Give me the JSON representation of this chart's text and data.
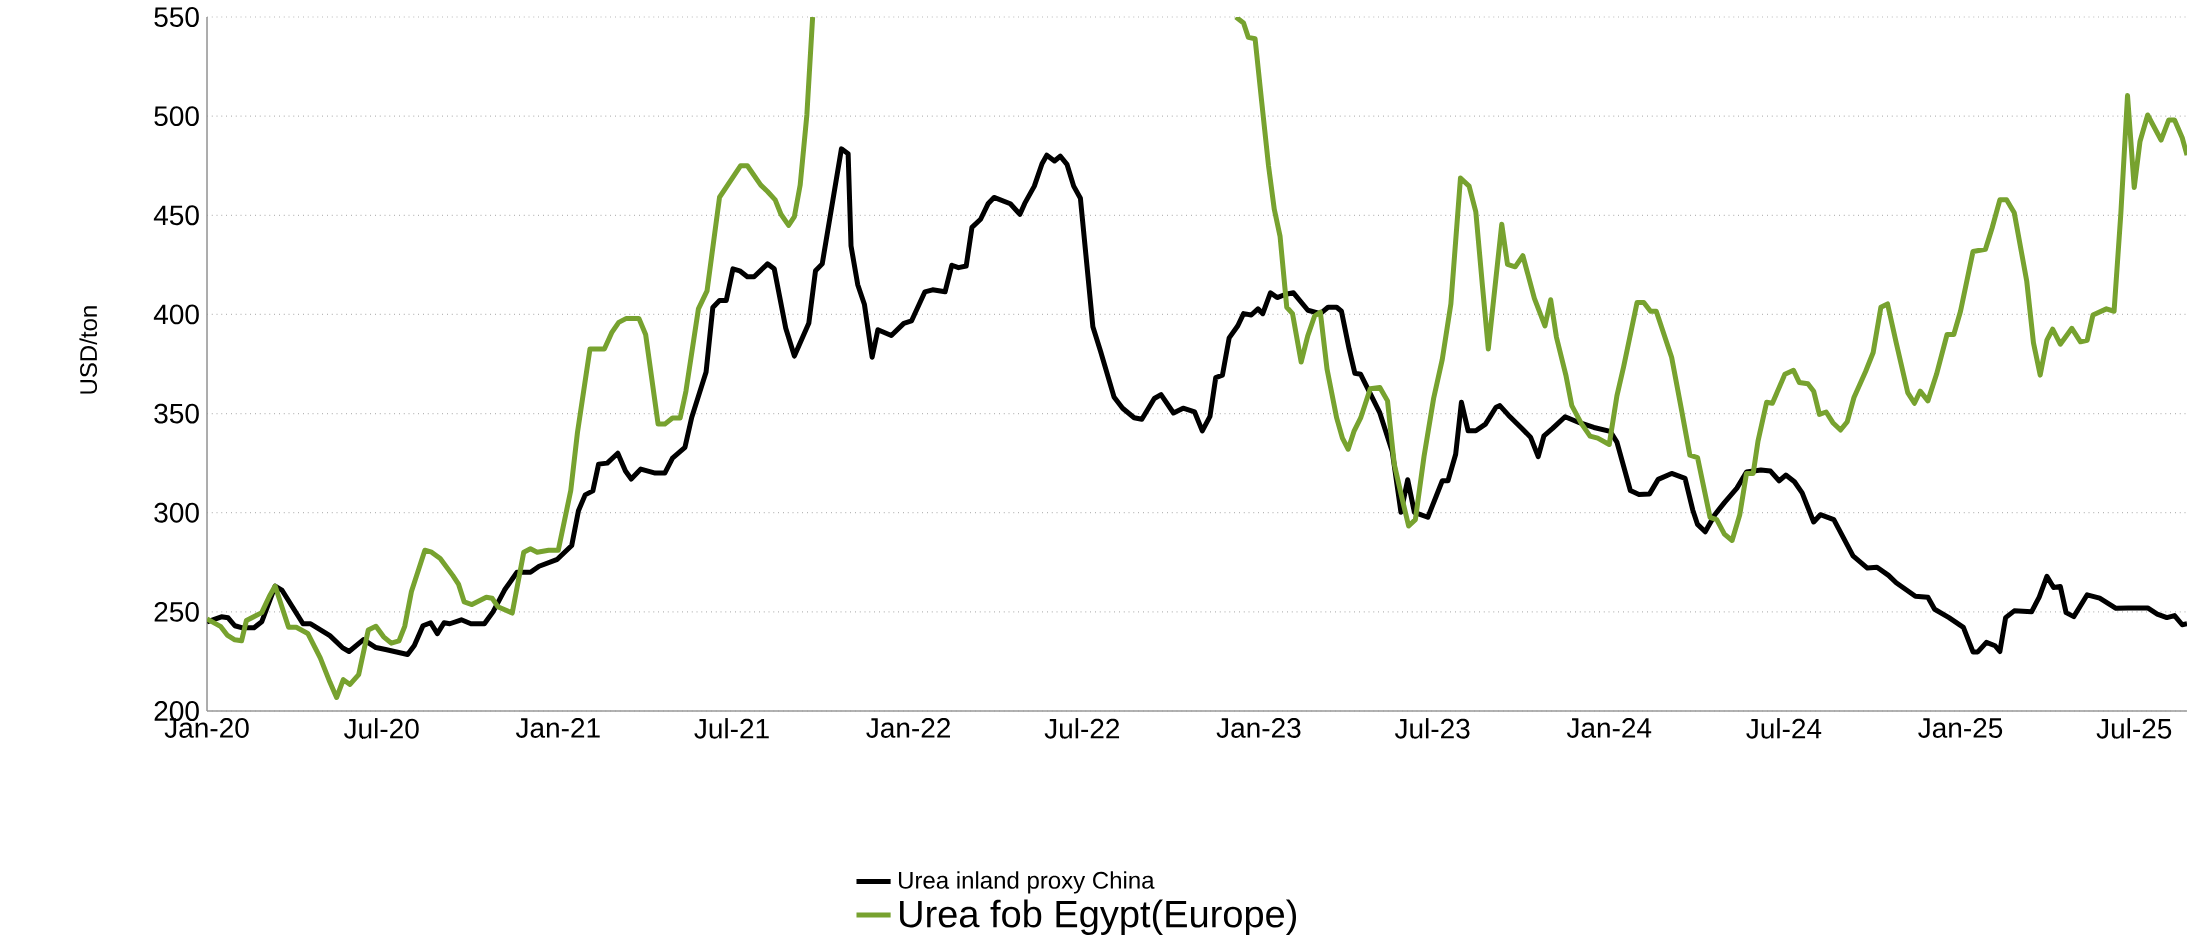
{
  "chart_data": {
    "type": "line",
    "ylabel": "USD/ton",
    "ylim": [
      200,
      550
    ],
    "yticks": [
      200,
      250,
      300,
      350,
      400,
      450,
      500,
      550
    ],
    "xlim": [
      "2020-01-01",
      "2025-08-25"
    ],
    "xticks": [
      {
        "value": "2020-01-01",
        "label": "Jan-20"
      },
      {
        "value": "2020-07-01",
        "label": "Jul-20"
      },
      {
        "value": "2021-01-01",
        "label": "Jan-21"
      },
      {
        "value": "2021-07-01",
        "label": "Jul-21"
      },
      {
        "value": "2022-01-01",
        "label": "Jan-22"
      },
      {
        "value": "2022-07-01",
        "label": "Jul-22"
      },
      {
        "value": "2023-01-01",
        "label": "Jan-23"
      },
      {
        "value": "2023-07-01",
        "label": "Jul-23"
      },
      {
        "value": "2024-01-01",
        "label": "Jan-24"
      },
      {
        "value": "2024-07-01",
        "label": "Jul-24"
      },
      {
        "value": "2025-01-01",
        "label": "Jan-25"
      },
      {
        "value": "2025-07-01",
        "label": "Jul-25"
      }
    ],
    "grid": "y",
    "legend": "bottom",
    "marker": "none",
    "line_style": "solid",
    "series": [
      {
        "name": "Urea inland proxy China",
        "color": "#000000",
        "x": [
          "2020-01-01",
          "2020-01-16",
          "2020-01-23",
          "2020-01-30",
          "2020-02-06",
          "2020-02-19",
          "2020-02-27",
          "2020-03-12",
          "2020-03-19",
          "2020-04-10",
          "2020-04-18",
          "2020-05-08",
          "2020-05-21",
          "2020-05-28",
          "2020-06-12",
          "2020-06-25",
          "2020-07-05",
          "2020-07-28",
          "2020-08-04",
          "2020-08-13",
          "2020-08-21",
          "2020-08-28",
          "2020-09-04",
          "2020-09-10",
          "2020-09-22",
          "2020-10-02",
          "2020-10-16",
          "2020-10-25",
          "2020-11-06",
          "2020-11-19",
          "2020-12-03",
          "2020-12-12",
          "2020-12-31",
          "2021-01-15",
          "2021-01-22",
          "2021-01-29",
          "2021-02-06",
          "2021-02-12",
          "2021-02-21",
          "2021-03-04",
          "2021-03-12",
          "2021-03-18",
          "2021-03-28",
          "2021-04-12",
          "2021-04-22",
          "2021-04-30",
          "2021-05-13",
          "2021-05-20",
          "2021-06-04",
          "2021-06-11",
          "2021-06-18",
          "2021-06-25",
          "2021-07-02",
          "2021-07-09",
          "2021-07-17",
          "2021-07-24",
          "2021-08-07",
          "2021-08-14",
          "2021-08-26",
          "2021-09-04",
          "2021-09-19",
          "2021-09-26",
          "2021-10-03",
          "2021-10-23",
          "2021-10-30",
          "2021-11-02",
          "2021-11-09",
          "2021-11-16",
          "2021-11-24",
          "2021-11-30",
          "2021-12-14",
          "2021-12-27",
          "2022-01-04",
          "2022-01-18",
          "2022-01-26",
          "2022-02-08",
          "2022-02-15",
          "2022-02-22",
          "2022-03-02",
          "2022-03-08",
          "2022-03-17",
          "2022-03-25",
          "2022-03-31",
          "2022-04-17",
          "2022-04-27",
          "2022-05-02",
          "2022-05-12",
          "2022-05-20",
          "2022-05-25",
          "2022-06-02",
          "2022-06-08",
          "2022-06-15",
          "2022-06-22",
          "2022-06-29",
          "2022-07-12",
          "2022-07-20",
          "2022-08-03",
          "2022-08-12",
          "2022-08-24",
          "2022-09-01",
          "2022-09-14",
          "2022-09-21",
          "2022-10-04",
          "2022-10-14",
          "2022-10-26",
          "2022-11-03",
          "2022-11-11",
          "2022-11-17",
          "2022-11-24",
          "2022-12-01",
          "2022-12-10",
          "2022-12-16",
          "2022-12-24",
          "2022-12-31",
          "2023-01-05",
          "2023-01-13",
          "2023-01-20",
          "2023-01-29",
          "2023-02-06",
          "2023-02-21",
          "2023-03-06",
          "2023-03-14",
          "2023-03-23",
          "2023-03-28",
          "2023-04-05",
          "2023-04-11",
          "2023-04-17",
          "2023-05-07",
          "2023-05-20",
          "2023-05-29",
          "2023-06-05",
          "2023-06-12",
          "2023-06-26",
          "2023-07-05",
          "2023-07-11",
          "2023-07-17",
          "2023-07-25",
          "2023-07-31",
          "2023-08-07",
          "2023-08-15",
          "2023-08-25",
          "2023-09-05",
          "2023-09-09",
          "2023-09-18",
          "2023-10-01",
          "2023-10-11",
          "2023-10-19",
          "2023-10-25",
          "2023-11-03",
          "2023-11-16",
          "2023-12-01",
          "2023-12-16",
          "2024-01-02",
          "2024-01-09",
          "2024-01-23",
          "2024-02-01",
          "2024-02-12",
          "2024-02-21",
          "2024-03-06",
          "2024-03-20",
          "2024-03-28",
          "2024-04-02",
          "2024-04-10",
          "2024-04-20",
          "2024-04-30",
          "2024-05-13",
          "2024-05-23",
          "2024-06-07",
          "2024-06-17",
          "2024-06-26",
          "2024-07-03",
          "2024-07-12",
          "2024-07-20",
          "2024-08-01",
          "2024-08-08",
          "2024-08-22",
          "2024-09-11",
          "2024-09-26",
          "2024-10-06",
          "2024-10-18",
          "2024-10-26",
          "2024-11-15",
          "2024-11-28",
          "2024-12-05",
          "2024-12-20",
          "2025-01-04",
          "2025-01-14",
          "2025-01-19",
          "2025-01-28",
          "2025-02-06",
          "2025-02-11",
          "2025-02-17",
          "2025-02-26",
          "2025-03-16",
          "2025-03-24",
          "2025-04-01",
          "2025-04-08",
          "2025-04-15",
          "2025-04-21",
          "2025-04-29",
          "2025-05-13",
          "2025-05-26",
          "2025-06-12",
          "2025-06-25",
          "2025-07-15",
          "2025-07-25",
          "2025-08-04",
          "2025-08-12",
          "2025-08-20",
          "2025-08-25"
        ],
        "values": [
          245,
          247.5,
          247,
          243,
          242,
          242,
          245,
          263,
          261,
          244,
          244,
          238,
          232,
          230,
          236,
          232,
          231,
          228.5,
          233,
          243,
          244.5,
          239,
          244.5,
          244,
          246,
          244,
          244,
          250,
          261,
          270,
          270,
          273,
          276.5,
          283.5,
          301,
          309,
          311,
          324.5,
          325,
          330,
          321,
          317,
          322,
          320,
          320,
          327.5,
          333,
          348,
          371,
          403.5,
          407,
          407,
          423,
          422,
          419,
          419,
          425.5,
          423,
          393,
          379,
          395.5,
          422,
          425.5,
          483.5,
          481,
          434.6,
          415,
          405,
          378.4,
          392.3,
          389.4,
          395.5,
          396.7,
          411.4,
          412.4,
          411.4,
          424.8,
          423.6,
          424.4,
          443.9,
          448,
          456,
          459,
          455.8,
          450.5,
          456,
          464.7,
          476,
          480.3,
          477.4,
          479.8,
          475.7,
          464.7,
          458.6,
          393.8,
          381.4,
          358.4,
          352.7,
          347.9,
          347.1,
          357.6,
          359.6,
          350.3,
          352.7,
          350.8,
          341.3,
          348.6,
          368.1,
          369.4,
          388.2,
          394.3,
          400.4,
          399.7,
          402.8,
          400.4,
          410.9,
          408.5,
          410.2,
          410.9,
          402.1,
          400.4,
          403.6,
          403.6,
          401.6,
          382.6,
          370.3,
          369.8,
          350.3,
          330.7,
          300.2,
          316.6,
          300.2,
          297.7,
          308.7,
          316.1,
          316.1,
          329.5,
          355.7,
          341.3,
          341.3,
          344.7,
          353.2,
          354,
          349.2,
          343,
          338.1,
          328.3,
          338.8,
          342.5,
          348.4,
          345.4,
          343,
          341,
          335.6,
          311.2,
          309.2,
          309.5,
          316.8,
          319.8,
          317.3,
          301.4,
          294.1,
          290.4,
          299,
          305.1,
          312.4,
          320.5,
          321.5,
          321,
          316.1,
          319,
          315.6,
          310,
          295.3,
          299,
          296.5,
          278.2,
          272.1,
          272.5,
          268.4,
          264.7,
          257.9,
          257.4,
          251.3,
          247.1,
          242.2,
          229.8,
          229.8,
          234.6,
          232.9,
          230,
          247.1,
          250.5,
          250,
          257.4,
          267.9,
          262.3,
          262.8,
          249.6,
          247.6,
          258.6,
          256.9,
          251.8,
          252,
          252,
          248.9,
          247.1,
          248.1,
          243.5,
          244
        ]
      },
      {
        "name": "Urea fob Egypt(Europe)",
        "color": "#77a22f",
        "x": [
          "2020-01-01",
          "2020-01-15",
          "2020-01-22",
          "2020-01-30",
          "2020-02-06",
          "2020-02-11",
          "2020-02-27",
          "2020-03-06",
          "2020-03-12",
          "2020-03-19",
          "2020-03-26",
          "2020-04-03",
          "2020-04-15",
          "2020-04-28",
          "2020-05-08",
          "2020-05-15",
          "2020-05-22",
          "2020-05-29",
          "2020-06-07",
          "2020-06-17",
          "2020-06-25",
          "2020-07-03",
          "2020-07-11",
          "2020-07-19",
          "2020-07-25",
          "2020-08-01",
          "2020-08-15",
          "2020-08-22",
          "2020-08-31",
          "2020-09-13",
          "2020-09-19",
          "2020-09-25",
          "2020-10-03",
          "2020-10-18",
          "2020-10-24",
          "2020-10-30",
          "2020-11-14",
          "2020-11-26",
          "2020-12-03",
          "2020-12-10",
          "2020-12-22",
          "2021-01-01",
          "2021-01-14",
          "2021-01-21",
          "2021-02-03",
          "2021-02-18",
          "2021-02-26",
          "2021-03-05",
          "2021-03-13",
          "2021-03-26",
          "2021-04-02",
          "2021-04-15",
          "2021-04-22",
          "2021-04-30",
          "2021-05-08",
          "2021-05-14",
          "2021-05-27",
          "2021-06-05",
          "2021-06-18",
          "2021-07-10",
          "2021-07-17",
          "2021-07-31",
          "2021-08-07",
          "2021-08-15",
          "2021-08-21",
          "2021-08-29",
          "2021-09-04",
          "2021-09-10",
          "2021-09-17",
          "2021-09-23",
          "2022-06-01",
          "2022-12-08",
          "2022-12-16",
          "2022-12-21",
          "2022-12-28",
          "2023-01-04",
          "2023-01-11",
          "2023-01-17",
          "2023-01-23",
          "2023-01-30",
          "2023-02-05",
          "2023-02-14",
          "2023-02-21",
          "2023-02-28",
          "2023-03-06",
          "2023-03-13",
          "2023-03-23",
          "2023-03-29",
          "2023-04-04",
          "2023-04-10",
          "2023-04-17",
          "2023-04-27",
          "2023-05-07",
          "2023-05-15",
          "2023-05-22",
          "2023-05-30",
          "2023-06-06",
          "2023-06-13",
          "2023-06-22",
          "2023-07-02",
          "2023-07-11",
          "2023-07-20",
          "2023-07-30",
          "2023-08-08",
          "2023-08-15",
          "2023-08-22",
          "2023-08-28",
          "2023-09-11",
          "2023-09-17",
          "2023-09-25",
          "2023-10-03",
          "2023-10-15",
          "2023-10-26",
          "2023-11-01",
          "2023-11-07",
          "2023-11-17",
          "2023-11-23",
          "2023-12-03",
          "2023-12-12",
          "2023-12-20",
          "2024-01-01",
          "2024-01-09",
          "2024-01-16",
          "2024-01-30",
          "2024-02-06",
          "2024-02-13",
          "2024-02-19",
          "2024-03-06",
          "2024-03-16",
          "2024-03-25",
          "2024-04-02",
          "2024-04-15",
          "2024-04-22",
          "2024-04-30",
          "2024-05-08",
          "2024-05-16",
          "2024-05-23",
          "2024-05-30",
          "2024-06-04",
          "2024-06-13",
          "2024-06-19",
          "2024-07-02",
          "2024-07-11",
          "2024-07-17",
          "2024-07-26",
          "2024-08-01",
          "2024-08-07",
          "2024-08-14",
          "2024-08-21",
          "2024-08-29",
          "2024-09-05",
          "2024-09-12",
          "2024-09-24",
          "2024-10-02",
          "2024-10-10",
          "2024-10-17",
          "2024-10-26",
          "2024-11-07",
          "2024-11-14",
          "2024-11-20",
          "2024-11-28",
          "2024-12-07",
          "2024-12-18",
          "2024-12-25",
          "2025-01-01",
          "2025-01-14",
          "2025-01-27",
          "2025-02-03",
          "2025-02-11",
          "2025-02-18",
          "2025-02-26",
          "2025-03-11",
          "2025-03-18",
          "2025-03-25",
          "2025-04-01",
          "2025-04-07",
          "2025-04-15",
          "2025-04-27",
          "2025-05-06",
          "2025-05-13",
          "2025-05-19",
          "2025-06-02",
          "2025-06-10",
          "2025-06-17",
          "2025-06-24",
          "2025-07-01",
          "2025-07-07",
          "2025-07-15",
          "2025-07-29",
          "2025-08-06",
          "2025-08-12",
          "2025-08-20",
          "2025-08-25"
        ],
        "values": [
          246.4,
          242.7,
          238.3,
          235.9,
          235.4,
          245.6,
          249.6,
          257.9,
          263,
          252.6,
          242.2,
          242.2,
          239.1,
          226.8,
          214.6,
          206.8,
          215.8,
          213.4,
          218.3,
          240.8,
          242.7,
          237.4,
          234.2,
          235.4,
          242.7,
          260.3,
          281.1,
          280.1,
          276.9,
          268.4,
          264,
          255,
          253.7,
          257.4,
          256.9,
          252.6,
          249.4,
          280.1,
          281.8,
          280.1,
          281.1,
          281.1,
          311.2,
          340.5,
          382.6,
          382.6,
          391.1,
          396,
          398,
          398,
          389.9,
          344.7,
          344.7,
          347.8,
          347.8,
          361.3,
          402.8,
          411.9,
          459.1,
          475,
          475,
          465.2,
          462,
          457.8,
          450.5,
          444.9,
          449.3,
          465.2,
          500.6,
          550,
          null,
          550,
          547,
          539.7,
          539,
          506.7,
          475,
          453,
          439.5,
          403.6,
          400.4,
          376,
          389.4,
          399.2,
          401.1,
          372.3,
          347.8,
          337.6,
          332,
          341,
          347.8,
          362.5,
          363.2,
          356.4,
          324.6,
          307.5,
          293.3,
          296.5,
          328.3,
          357.6,
          377.2,
          405.3,
          468.8,
          464.7,
          451.7,
          413.8,
          382.6,
          445.5,
          425.2,
          424,
          429.6,
          408.1,
          394.2,
          407.4,
          388.5,
          369,
          354,
          344.9,
          338.6,
          337.6,
          334.4,
          358.9,
          373.6,
          406,
          406,
          401.6,
          401.6,
          378.4,
          352.7,
          329,
          327.8,
          297.7,
          296.5,
          289.2,
          286,
          299,
          319.8,
          319.8,
          336.1,
          355.7,
          355.2,
          369.8,
          371.8,
          365.7,
          365,
          361.3,
          349.6,
          350.8,
          345.4,
          341.7,
          345.9,
          358.1,
          371.1,
          380.8,
          403.6,
          405.3,
          385.7,
          360.6,
          355.2,
          361.3,
          356.4,
          369.8,
          389.9,
          389.9,
          401.6,
          431.7,
          432.9,
          443.7,
          457.8,
          457.8,
          451.3,
          416.8,
          385.7,
          369.4,
          387,
          392.6,
          385,
          393,
          386.2,
          387,
          399.7,
          402.8,
          401.6,
          450.5,
          510.4,
          464,
          487.2,
          500.6,
          487.9,
          498.1,
          498.1,
          489.1,
          480.3
        ]
      }
    ]
  }
}
